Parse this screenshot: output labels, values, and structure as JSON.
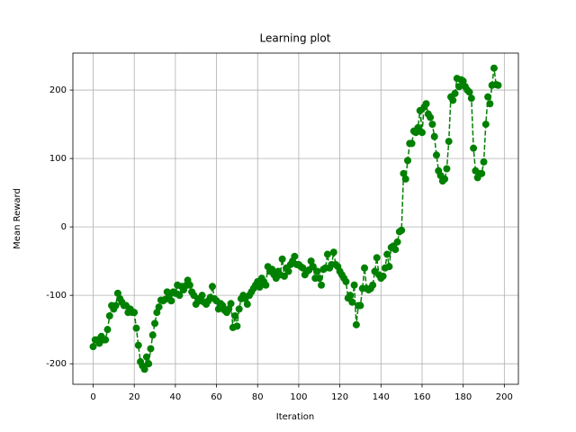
{
  "chart_data": {
    "type": "line",
    "title": "Learning plot",
    "x_label": "Iteration",
    "y_label": "Mean Reward",
    "x": [
      0,
      1,
      2,
      3,
      4,
      5,
      6,
      7,
      8,
      9,
      10,
      11,
      12,
      13,
      14,
      15,
      16,
      17,
      18,
      19,
      20,
      21,
      22,
      23,
      24,
      25,
      26,
      27,
      28,
      29,
      30,
      31,
      32,
      33,
      34,
      35,
      36,
      37,
      38,
      39,
      40,
      41,
      42,
      43,
      44,
      45,
      46,
      47,
      48,
      49,
      50,
      51,
      52,
      53,
      54,
      55,
      56,
      57,
      58,
      59,
      60,
      61,
      62,
      63,
      64,
      65,
      66,
      67,
      68,
      69,
      70,
      71,
      72,
      73,
      74,
      75,
      76,
      77,
      78,
      79,
      80,
      81,
      82,
      83,
      84,
      85,
      86,
      87,
      88,
      89,
      90,
      91,
      92,
      93,
      94,
      95,
      96,
      97,
      98,
      99,
      100,
      101,
      102,
      103,
      104,
      105,
      106,
      107,
      108,
      109,
      110,
      111,
      112,
      113,
      114,
      115,
      116,
      117,
      118,
      119,
      120,
      121,
      122,
      123,
      124,
      125,
      126,
      127,
      128,
      129,
      130,
      131,
      132,
      133,
      134,
      135,
      136,
      137,
      138,
      139,
      140,
      141,
      142,
      143,
      144,
      145,
      146,
      147,
      148,
      149,
      150,
      151,
      152,
      153,
      154,
      155,
      156,
      157,
      158,
      159,
      160,
      161,
      162,
      163,
      164,
      165,
      166,
      167,
      168,
      169,
      170,
      171,
      172,
      173,
      174,
      175,
      176,
      177,
      178,
      179,
      180,
      181,
      182,
      183,
      184,
      185,
      186,
      187,
      188,
      189,
      190,
      191,
      192,
      193,
      194,
      195,
      196,
      197
    ],
    "series": [
      {
        "color": "#008000",
        "values": [
          -175,
          -165,
          -165,
          -170,
          -160,
          -165,
          -165,
          -150,
          -130,
          -115,
          -120,
          -115,
          -97,
          -105,
          -110,
          -115,
          -115,
          -125,
          -120,
          -125,
          -125,
          -148,
          -173,
          -197,
          -203,
          -208,
          -190,
          -200,
          -178,
          -158,
          -141,
          -125,
          -117,
          -107,
          -108,
          -106,
          -95,
          -100,
          -108,
          -95,
          -97,
          -85,
          -100,
          -87,
          -92,
          -86,
          -78,
          -85,
          -95,
          -100,
          -113,
          -105,
          -108,
          -100,
          -110,
          -113,
          -108,
          -103,
          -87,
          -105,
          -108,
          -120,
          -112,
          -115,
          -122,
          -125,
          -120,
          -112,
          -147,
          -130,
          -145,
          -120,
          -105,
          -100,
          -105,
          -113,
          -100,
          -95,
          -90,
          -85,
          -80,
          -88,
          -75,
          -80,
          -85,
          -58,
          -65,
          -62,
          -70,
          -75,
          -65,
          -70,
          -47,
          -72,
          -60,
          -65,
          -55,
          -50,
          -43,
          -55,
          -55,
          -58,
          -60,
          -70,
          -65,
          -63,
          -50,
          -58,
          -75,
          -65,
          -75,
          -85,
          -62,
          -60,
          -40,
          -60,
          -55,
          -37,
          -55,
          -58,
          -65,
          -70,
          -75,
          -80,
          -104,
          -100,
          -110,
          -85,
          -143,
          -115,
          -115,
          -90,
          -60,
          -90,
          -92,
          -90,
          -85,
          -65,
          -45,
          -70,
          -75,
          -72,
          -60,
          -40,
          -58,
          -30,
          -28,
          -33,
          -22,
          -7,
          -5,
          78,
          70,
          97,
          122,
          122,
          140,
          138,
          145,
          170,
          138,
          175,
          180,
          165,
          160,
          150,
          132,
          105,
          82,
          75,
          67,
          70,
          85,
          125,
          190,
          185,
          195,
          217,
          205,
          215,
          213,
          205,
          200,
          197,
          188,
          115,
          82,
          72,
          78,
          78,
          95,
          150,
          190,
          180,
          207,
          232,
          208,
          207
        ]
      }
    ],
    "xlim": [
      -9.85,
      206.85
    ],
    "ylim": [
      -230,
      254
    ],
    "xticks": [
      0,
      20,
      40,
      60,
      80,
      100,
      120,
      140,
      160,
      180,
      200
    ],
    "yticks": [
      -200,
      -100,
      0,
      100,
      200
    ],
    "grid": true,
    "line_style": "dashed",
    "marker": "circle"
  }
}
